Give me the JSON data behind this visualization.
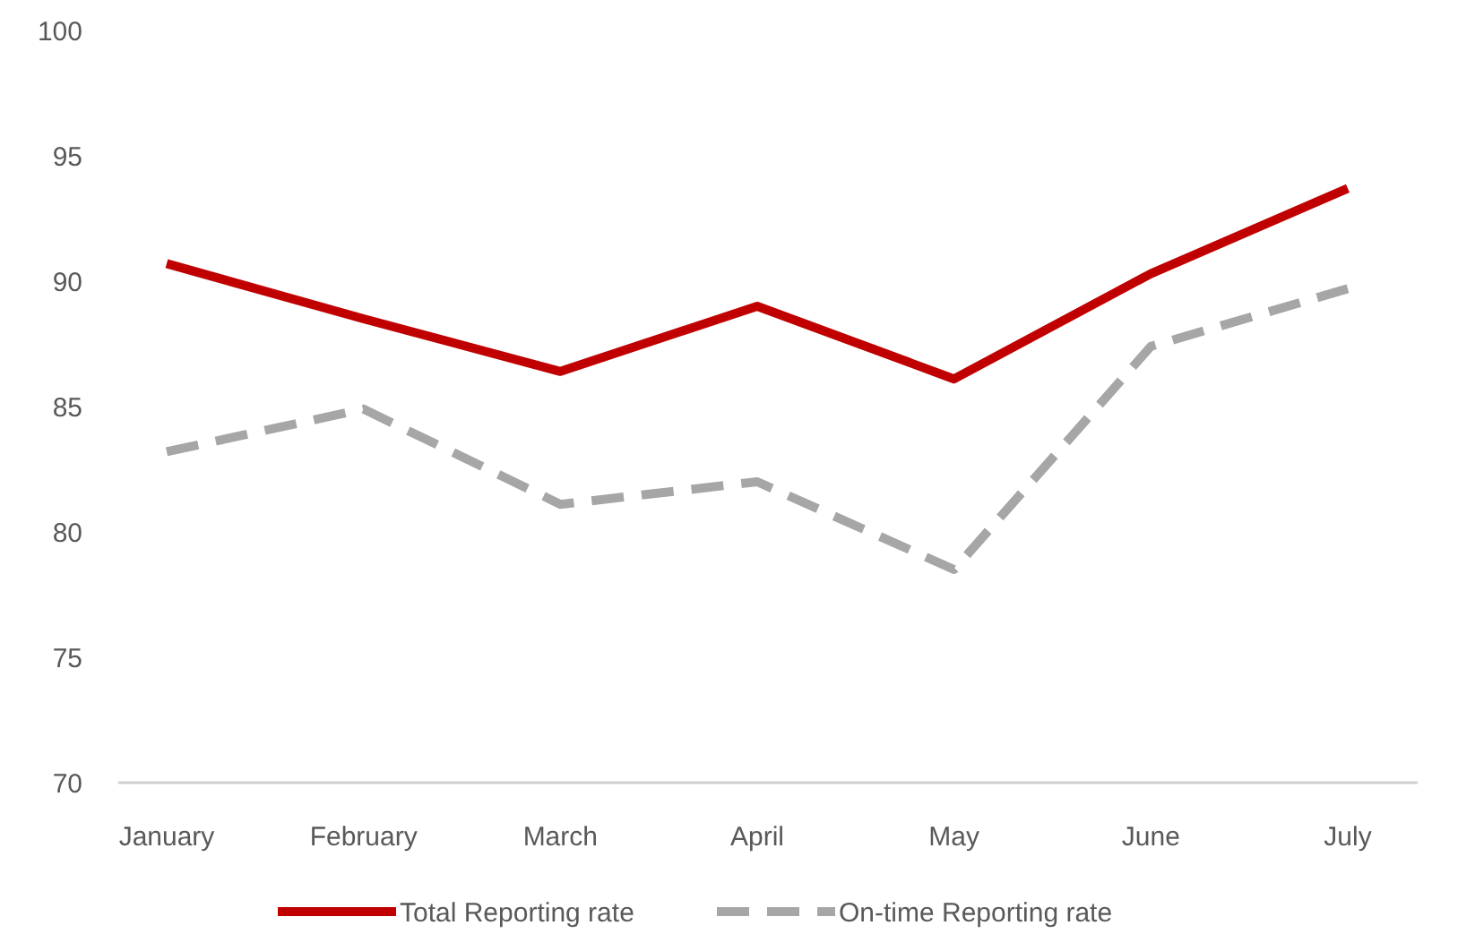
{
  "chart_data": {
    "type": "line",
    "categories": [
      "January",
      "February",
      "March",
      "April",
      "May",
      "June",
      "July"
    ],
    "series": [
      {
        "name": "Total Reporting rate",
        "color": "#c00000",
        "values": [
          90.7,
          88.5,
          86.4,
          89.0,
          86.1,
          90.3,
          93.7
        ],
        "line_style": "solid"
      },
      {
        "name": "On-time Reporting rate",
        "color": "#a6a6a6",
        "values": [
          83.2,
          84.9,
          81.1,
          82.0,
          78.5,
          87.4,
          89.7
        ],
        "line_style": "dashed"
      }
    ],
    "ylim": [
      70,
      100
    ],
    "yticks": [
      70,
      75,
      80,
      85,
      90,
      95,
      100
    ],
    "grid": false,
    "legend": "bottom",
    "marker": "none"
  }
}
